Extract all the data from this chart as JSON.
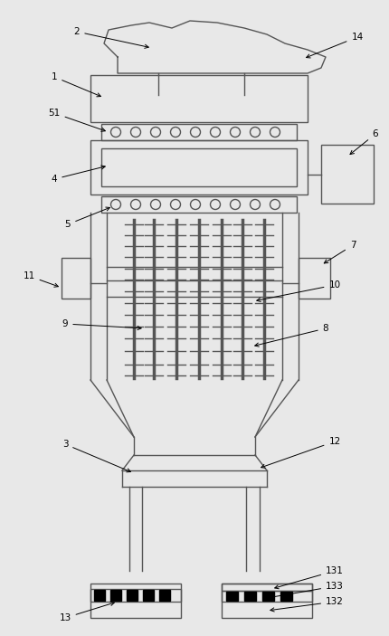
{
  "fig_width": 4.3,
  "fig_height": 7.03,
  "dpi": 100,
  "line_color": "#555555",
  "bg_color": "#e8e8e8",
  "lw": 1.0
}
